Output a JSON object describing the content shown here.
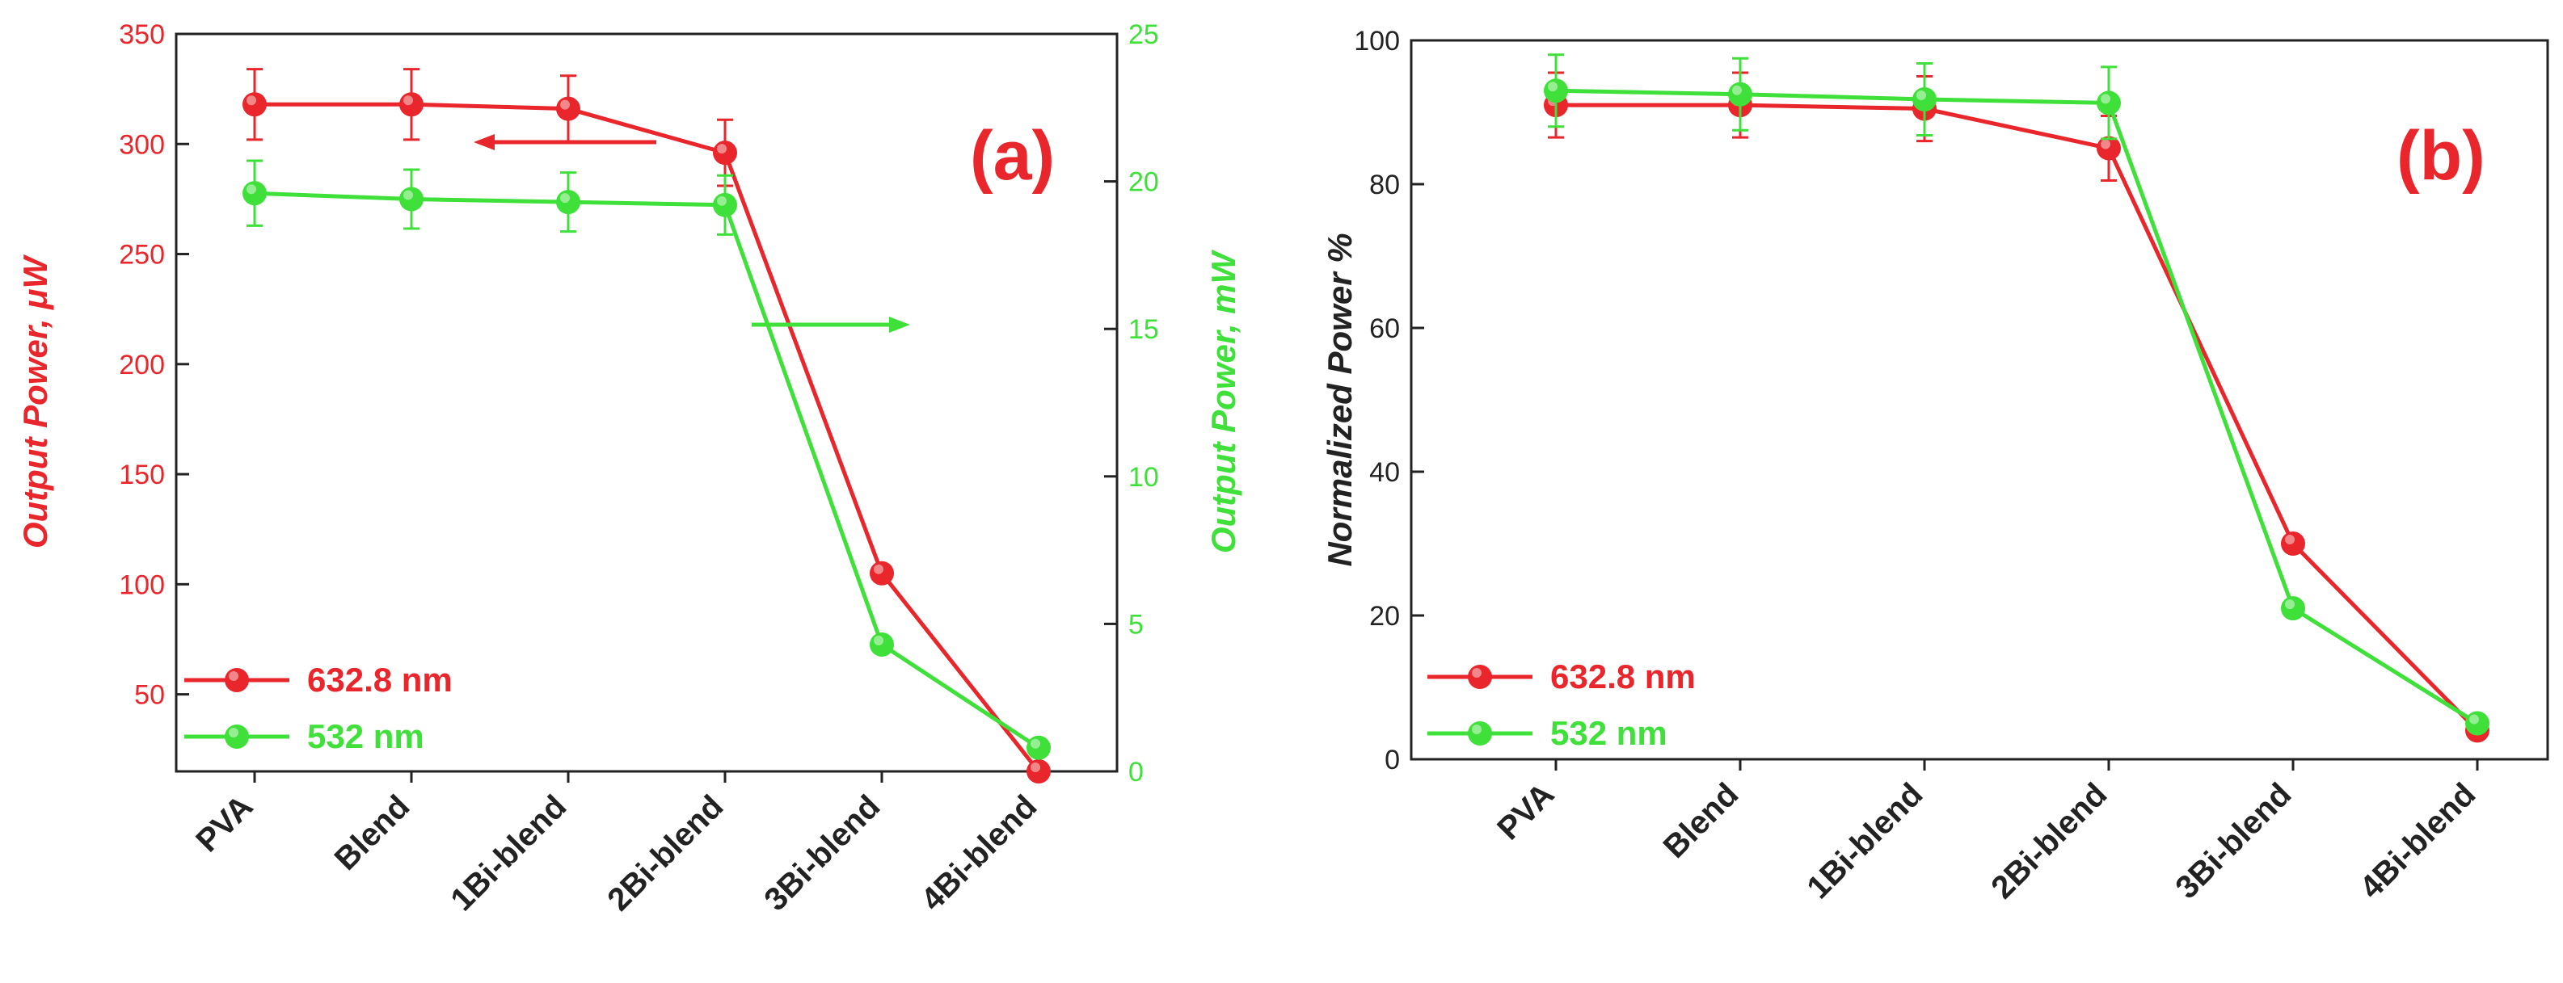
{
  "colors": {
    "red": "#e8262b",
    "green": "#3fe03a",
    "axis": "#222222"
  },
  "chart_data": [
    {
      "type": "line",
      "panel_label": "(a)",
      "categories": [
        "PVA",
        "Blend",
        "1Bi-blend",
        "2Bi-blend",
        "3Bi-blend",
        "4Bi-blend"
      ],
      "ylabel_left": "Output Power, μW",
      "ylabel_right": "Output Power, mW",
      "ylim_left": [
        15,
        350
      ],
      "yticks_left": [
        50,
        100,
        150,
        200,
        250,
        300,
        350
      ],
      "ylim_right": [
        0,
        25
      ],
      "yticks_right": [
        0,
        5,
        10,
        15,
        20,
        25
      ],
      "series": [
        {
          "name": "632.8 nm",
          "axis": "left",
          "color": "red",
          "values": [
            318,
            318,
            316,
            296,
            105,
            15
          ],
          "errors": [
            16,
            16,
            15,
            15,
            0,
            0
          ]
        },
        {
          "name": "532 nm",
          "axis": "right",
          "color": "green",
          "values": [
            19.6,
            19.4,
            19.3,
            19.2,
            4.3,
            0.8
          ],
          "errors": [
            1.1,
            1.0,
            1.0,
            1.0,
            0,
            0
          ]
        }
      ],
      "annotations": [
        "left-arrow → 632.8 nm on left axis",
        "right-arrow → 532 nm on right axis"
      ],
      "legend": "bottom-left"
    },
    {
      "type": "line",
      "panel_label": "(b)",
      "categories": [
        "PVA",
        "Blend",
        "1Bi-blend",
        "2Bi-blend",
        "3Bi-blend",
        "4Bi-blend"
      ],
      "ylabel": "Normalized Power %",
      "ylim": [
        0,
        100
      ],
      "yticks": [
        0,
        20,
        40,
        60,
        80,
        100
      ],
      "series": [
        {
          "name": "632.8 nm",
          "color": "red",
          "values": [
            91,
            91,
            90.5,
            85,
            30,
            4
          ],
          "errors": [
            4.5,
            4.5,
            4.5,
            4.5,
            0,
            0
          ]
        },
        {
          "name": "532 nm",
          "color": "green",
          "values": [
            93,
            92.5,
            91.8,
            91.3,
            21,
            5
          ],
          "errors": [
            5,
            5,
            5,
            5,
            0,
            0
          ]
        }
      ],
      "legend": "bottom-left"
    }
  ]
}
